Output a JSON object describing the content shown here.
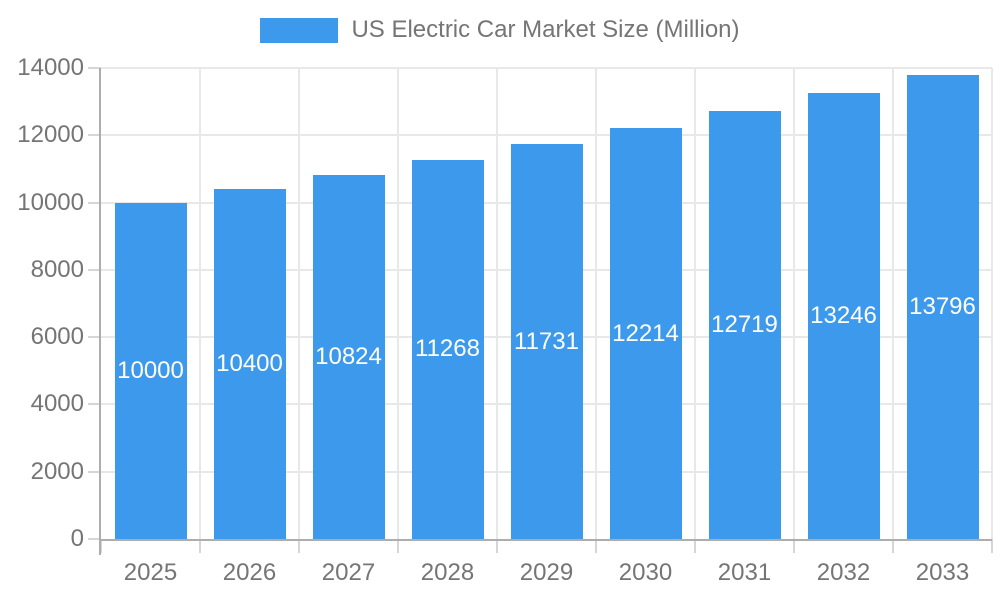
{
  "chart_data": {
    "type": "bar",
    "title": "US Electric Car Market Size (Million)",
    "series": [
      {
        "name": "US Electric Car Market Size (Million)",
        "values": [
          10000,
          10400,
          10824,
          11268,
          11731,
          12214,
          12719,
          13246,
          13796
        ]
      }
    ],
    "categories": [
      "2025",
      "2026",
      "2027",
      "2028",
      "2029",
      "2030",
      "2031",
      "2032",
      "2033"
    ],
    "bar_value_labels": [
      "10000",
      "10400",
      "10824",
      "11268",
      "11731",
      "12214",
      "12719",
      "13246",
      "13796"
    ],
    "xlabel": "",
    "ylabel": "",
    "ylim": [
      0,
      14000
    ],
    "yticks": [
      0,
      2000,
      4000,
      6000,
      8000,
      10000,
      12000,
      14000
    ],
    "ytick_labels": [
      "0",
      "2000",
      "4000",
      "6000",
      "8000",
      "10000",
      "12000",
      "14000"
    ],
    "grid": "on",
    "legend_position": "top-center",
    "value_label_position": "inside-middle"
  },
  "colors": {
    "bar": "#3D99EB",
    "axis_text": "#757575",
    "grid_line": "#E8E8E8",
    "axis_line": "#ADADAD",
    "tick_line": "#D6D6D6",
    "bar_label_text": "#FFFFFF",
    "background": "#FFFFFF"
  }
}
